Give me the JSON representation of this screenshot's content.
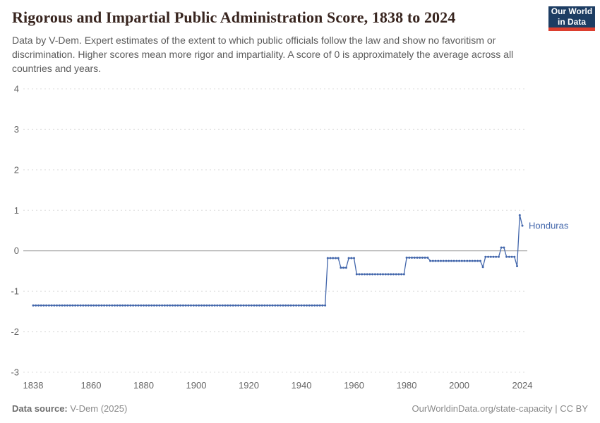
{
  "header": {
    "title": "Rigorous and Impartial Public Administration Score, 1838 to 2024",
    "subtitle": "Data by V-Dem. Expert estimates of the extent to which public officials follow the law and show no favoritism or discrimination. Higher scores mean more rigor and impartiality. A score of 0 is approximately the average across all countries and years.",
    "logo": {
      "line1": "Our World",
      "line2": "in Data"
    }
  },
  "footer": {
    "source_label": "Data source:",
    "source_value": " V-Dem (2025)",
    "right_text": "OurWorldinData.org/state-capacity | CC BY"
  },
  "colors": {
    "line": "#4266ab",
    "grid": "#dcdcdc",
    "zero_line": "#9e9e9e",
    "tick_label": "#666666",
    "logo_bg": "#1d3d63",
    "logo_accent": "#dc3e2e",
    "title_text": "#38251f"
  },
  "chart_data": {
    "type": "line",
    "title": "Rigorous and Impartial Public Administration Score, 1838 to 2024",
    "xlabel": "",
    "ylabel": "",
    "xlim": [
      1838,
      2024
    ],
    "ylim": [
      -3,
      4
    ],
    "x_ticks": [
      1838,
      1860,
      1880,
      1900,
      1920,
      1940,
      1960,
      1980,
      2000,
      2024
    ],
    "y_ticks": [
      4,
      3,
      2,
      1,
      0,
      -1,
      -2,
      -3
    ],
    "grid": "dashed horizontal gridlines, solid line at 0",
    "legend_position": "end-of-line label",
    "series": [
      {
        "name": "Honduras",
        "color": "#4266ab",
        "segments": [
          {
            "from": 1838,
            "to": 1949,
            "value": -1.35
          },
          {
            "from": 1950,
            "to": 1954,
            "value": -0.18
          },
          {
            "from": 1955,
            "to": 1957,
            "value": -0.42
          },
          {
            "from": 1958,
            "to": 1960,
            "value": -0.18
          },
          {
            "from": 1961,
            "to": 1979,
            "value": -0.58
          },
          {
            "from": 1980,
            "to": 1988,
            "value": -0.17
          },
          {
            "from": 1989,
            "to": 2008,
            "value": -0.25
          },
          {
            "from": 2009,
            "to": 2009,
            "value": -0.4
          },
          {
            "from": 2010,
            "to": 2015,
            "value": -0.15
          },
          {
            "from": 2016,
            "to": 2017,
            "value": 0.08
          },
          {
            "from": 2018,
            "to": 2021,
            "value": -0.15
          },
          {
            "from": 2022,
            "to": 2022,
            "value": -0.38
          },
          {
            "from": 2023,
            "to": 2023,
            "value": 0.88
          },
          {
            "from": 2024,
            "to": 2024,
            "value": 0.62
          }
        ]
      }
    ]
  }
}
